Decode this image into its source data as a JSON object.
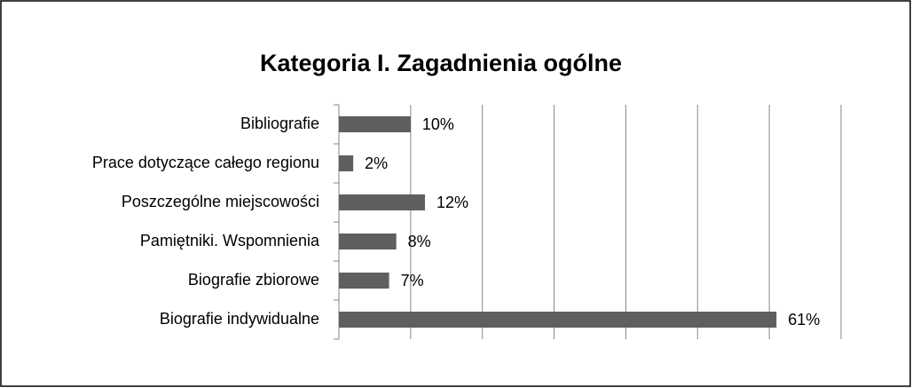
{
  "chart_data": {
    "type": "bar",
    "orientation": "horizontal",
    "title": "Kategoria I. Zagadnienia ogólne",
    "categories": [
      "Bibliografie",
      "Prace dotyczące całego regionu",
      "Poszczególne miejscowości",
      "Pamiętniki. Wspomnienia",
      "Biografie zbiorowe",
      "Biografie indywidualne"
    ],
    "values": [
      10,
      2,
      12,
      8,
      7,
      61
    ],
    "value_labels": [
      "10%",
      "2%",
      "12%",
      "8%",
      "7%",
      "61%"
    ],
    "color": "#5f5f5f",
    "xlim": [
      0,
      70
    ],
    "xticks": [
      0,
      10,
      20,
      30,
      40,
      50,
      60,
      70
    ],
    "grid": true
  }
}
